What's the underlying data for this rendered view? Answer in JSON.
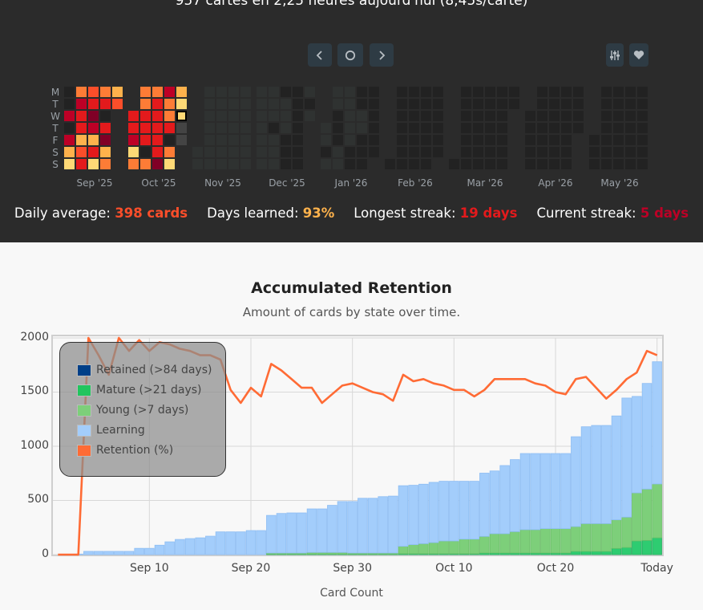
{
  "header": {
    "today_summary": "957 cartes en 2,25 heures aujourd'hui (8,45s/carte)",
    "buttons": {
      "prev": "chevron-left-icon",
      "reset": "circle-icon",
      "next": "chevron-right-icon",
      "options": "sliders-icon",
      "donate": "heart-icon"
    }
  },
  "heatmap": {
    "day_labels": [
      "M",
      "T",
      "W",
      "T",
      "F",
      "S",
      "S"
    ],
    "month_labels": [
      "Sep '25",
      "Oct '25",
      "Nov '25",
      "Dec '25",
      "Jan '26",
      "Feb '26",
      "Mar '26",
      "Apr '26",
      "May '26"
    ],
    "palette": {
      "d": "#222222",
      "g": "#2f3231",
      "m": "#444444",
      "Y": "#fed976",
      "L": "#feb24c",
      "O": "#fd7c36",
      "R": "#fc4e2a",
      "E": "#e31a1c",
      "C": "#bd0026",
      "D": "#800026"
    },
    "today_cell": {
      "block": 1,
      "column": 4,
      "row": 2
    },
    "blocks": [
      [
        "ddCdCLY",
        "OCEELRE",
        "REDCLEY",
        "OEdEDLO",
        "LR....."
      ],
      [
        "..EECYO",
        "OOEEEdO",
        "OEEEEED",
        "COOEdOY",
        "LYYmm.."
      ],
      [
        ".....gg",
        "ggggggg",
        "ggggggg",
        "ggggggg",
        "ggggggg"
      ],
      [
        "ggggggg",
        "gggdggg",
        "dgggddd",
        "ddddddd",
        "gdg...."
      ],
      [
        "...ggdg",
        "ggdddgg",
        "gggggdd",
        "ddggddd",
        "dddddd."
      ],
      [
        "......d",
        "ddddddd",
        "ddddddd",
        "ddddddd",
        "dddddd."
      ],
      [
        "......d",
        "ddddddd",
        "ddddddd",
        "ddddddd",
        "ddddddd",
        "dd....."
      ],
      [
        "..ddddd",
        "ddddddd",
        "ddddddd",
        "ddddddd",
        "dddd..."
      ],
      [
        "....ddd",
        "ddddddd",
        "ddddddd",
        "ddddddd",
        "ddddddd"
      ]
    ]
  },
  "stats": {
    "daily_average_label": "Daily average:",
    "daily_average_value": "398 cards",
    "days_learned_label": "Days learned:",
    "days_learned_value": "93%",
    "longest_streak_label": "Longest streak:",
    "longest_streak_value": "19 days",
    "current_streak_label": "Current streak:",
    "current_streak_value": "5 days",
    "colors": {
      "daily_average": "#fc4e2a",
      "days_learned": "#feb24c",
      "longest_streak": "#e31a1c",
      "current_streak": "#bd0026"
    }
  },
  "chart_data": {
    "type": "bar",
    "title": "Accumulated Retention",
    "subtitle": "Amount of cards by state over time.",
    "xlabel": "Card Count",
    "ylabel": "",
    "ylim": [
      0,
      2000
    ],
    "yticks": [
      "2000",
      "1500",
      "1000",
      "500",
      "0"
    ],
    "ytick_values": [
      2000,
      1500,
      1000,
      500,
      0
    ],
    "x_start": "Sep 1",
    "day_count": 60,
    "xticks": [
      {
        "day": 9,
        "label": "Sep 10"
      },
      {
        "day": 19,
        "label": "Sep 20"
      },
      {
        "day": 29,
        "label": "Sep 30"
      },
      {
        "day": 39,
        "label": "Oct 10"
      },
      {
        "day": 49,
        "label": "Oct 20"
      },
      {
        "day": 59,
        "label": "Today"
      }
    ],
    "grid": true,
    "legend_position": "top-left",
    "retention_ylim_percent": [
      0,
      100
    ],
    "series": [
      {
        "name": "Retained (>84 days)",
        "color": "#003f88",
        "stacked": true,
        "values": [
          0,
          0,
          0,
          0,
          0,
          0,
          0,
          0,
          0,
          0,
          0,
          0,
          0,
          0,
          0,
          0,
          0,
          0,
          0,
          0,
          0,
          0,
          0,
          0,
          0,
          0,
          0,
          0,
          0,
          0,
          0,
          0,
          0,
          0,
          0,
          0,
          0,
          0,
          0,
          0,
          0,
          0,
          0,
          0,
          0,
          0,
          0,
          0,
          0,
          0,
          0,
          0,
          0,
          0,
          0,
          0,
          0,
          0,
          0,
          0
        ]
      },
      {
        "name": "Mature (>21 days)",
        "color": "#2ecc71",
        "stacked": true,
        "values": [
          0,
          0,
          0,
          0,
          0,
          0,
          0,
          0,
          0,
          0,
          0,
          0,
          0,
          0,
          0,
          0,
          0,
          0,
          0,
          0,
          0,
          5,
          5,
          5,
          5,
          5,
          5,
          5,
          5,
          5,
          5,
          5,
          5,
          5,
          8,
          8,
          8,
          8,
          8,
          8,
          8,
          8,
          15,
          15,
          15,
          15,
          15,
          15,
          15,
          15,
          15,
          30,
          30,
          30,
          30,
          57,
          66,
          126,
          131,
          155
        ]
      },
      {
        "name": "Young (>7 days)",
        "color": "#7dcf7a",
        "stacked": true,
        "values": [
          0,
          0,
          0,
          0,
          0,
          0,
          0,
          0,
          0,
          0,
          0,
          0,
          0,
          0,
          0,
          0,
          0,
          0,
          0,
          0,
          0,
          10,
          10,
          10,
          10,
          15,
          15,
          15,
          15,
          10,
          10,
          10,
          10,
          10,
          69,
          84,
          93,
          103,
          118,
          118,
          135,
          135,
          153,
          178,
          178,
          197,
          215,
          215,
          225,
          225,
          225,
          229,
          256,
          256,
          256,
          264,
          280,
          444,
          474,
          497
        ]
      },
      {
        "name": "Learning",
        "color": "#a3cdfb",
        "stacked": true,
        "values": [
          0,
          0,
          5,
          30,
          30,
          30,
          30,
          30,
          58,
          58,
          87,
          118,
          140,
          148,
          155,
          170,
          210,
          210,
          210,
          222,
          222,
          347,
          365,
          370,
          370,
          402,
          402,
          435,
          470,
          475,
          505,
          505,
          520,
          525,
          559,
          548,
          549,
          556,
          551,
          551,
          534,
          534,
          584,
          579,
          629,
          665,
          703,
          703,
          693,
          693,
          693,
          829,
          894,
          906,
          906,
          959,
          1099,
          890,
          975,
          1128
        ]
      },
      {
        "name": "Retention (%)",
        "color": "#ff6b35",
        "type": "line",
        "values": [
          0,
          0,
          0,
          100,
          92,
          83,
          100,
          94,
          99,
          94,
          98,
          97,
          95,
          94,
          92,
          92,
          90,
          76,
          70,
          77,
          73,
          88,
          85,
          81,
          77,
          77,
          70,
          74,
          78,
          79,
          77,
          75,
          74,
          71,
          83,
          80,
          81,
          79,
          78,
          76,
          76,
          73,
          76,
          81,
          81,
          81,
          81,
          79,
          78,
          75,
          74,
          81,
          82,
          77,
          72,
          76,
          81,
          84,
          94,
          92
        ]
      }
    ]
  }
}
